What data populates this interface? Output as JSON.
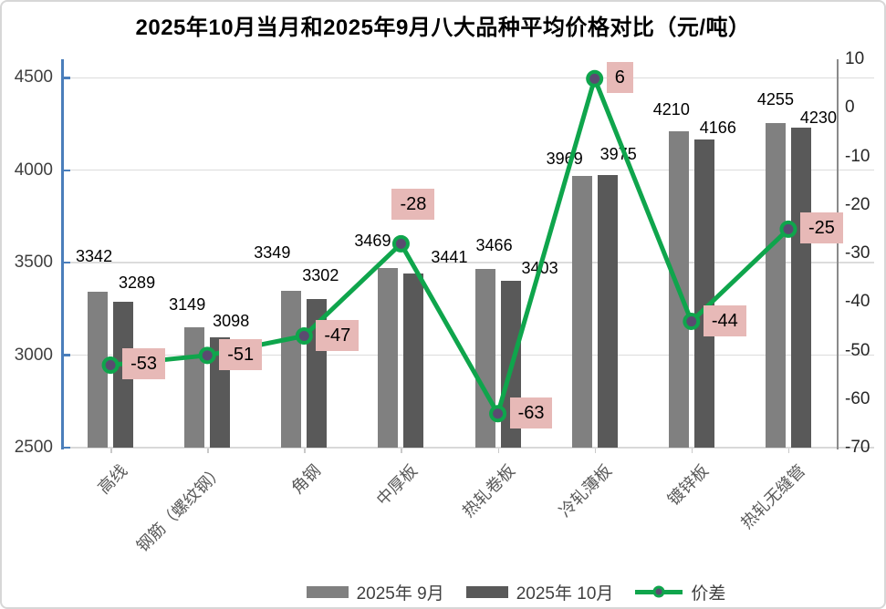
{
  "title": "2025年10月当月和2025年9月八大品种平均价格对比（元/吨）",
  "chart_data": {
    "type": "bar",
    "subtype": "bar+line combo, dual axis",
    "categories": [
      "高线",
      "钢筋（螺纹钢）",
      "角钢",
      "中厚板",
      "热轧卷板",
      "冷轧薄板",
      "镀锌板",
      "热轧无缝管"
    ],
    "series": [
      {
        "name": "2025年 9月",
        "type": "bar",
        "axis": "primary",
        "color": "#808080",
        "values": [
          3342,
          3149,
          3349,
          3469,
          3466,
          3969,
          4210,
          4255
        ]
      },
      {
        "name": "2025年 10月",
        "type": "bar",
        "axis": "primary",
        "color": "#595959",
        "values": [
          3289,
          3098,
          3302,
          3441,
          3403,
          3975,
          4166,
          4230
        ]
      },
      {
        "name": "价差",
        "type": "line",
        "axis": "secondary",
        "color": "#0fa54c",
        "marker_color": "#5a4b70",
        "label_bg": "#e7b9b7",
        "values": [
          -53,
          -51,
          -47,
          -28,
          -63,
          6,
          -44,
          -25
        ]
      }
    ],
    "axes": {
      "primary": {
        "min": 2500,
        "max": 4600,
        "ticks": [
          4500,
          4000,
          3500,
          3000,
          2500
        ],
        "line_color": "#4a7ebb"
      },
      "secondary": {
        "min": -70,
        "max": 10,
        "ticks": [
          10,
          0,
          -10,
          -20,
          -30,
          -40,
          -50,
          -60,
          -70
        ],
        "line_color": "#8a8a8a"
      }
    },
    "legend_position": "bottom",
    "grid": true
  }
}
